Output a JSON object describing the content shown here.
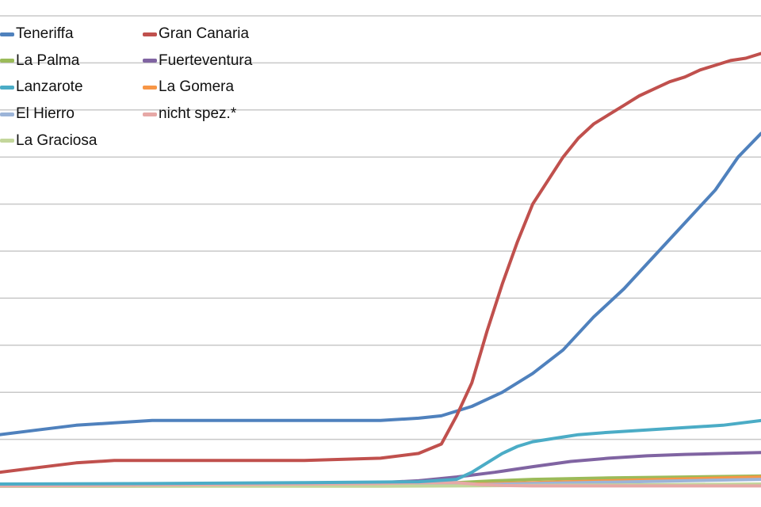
{
  "chart_data": {
    "type": "line",
    "title": "",
    "xlabel": "",
    "ylabel": "",
    "x_range": [
      0,
      100
    ],
    "ylim": [
      0,
      100
    ],
    "grid": true,
    "legend_position": "top-left",
    "series": [
      {
        "name": "Teneriffa",
        "color": "#4f81bd",
        "x": [
          0,
          5,
          10,
          15,
          20,
          30,
          40,
          50,
          55,
          58,
          62,
          66,
          70,
          74,
          78,
          82,
          86,
          90,
          94,
          97,
          100
        ],
        "y": [
          11,
          12,
          13,
          13.5,
          14,
          14,
          14,
          14,
          14.5,
          15,
          17,
          20,
          24,
          29,
          36,
          42,
          49,
          56,
          63,
          70,
          75
        ]
      },
      {
        "name": "Gran Canaria",
        "color": "#c0504d",
        "x": [
          0,
          5,
          10,
          15,
          20,
          30,
          40,
          50,
          55,
          58,
          60,
          62,
          64,
          66,
          68,
          70,
          72,
          74,
          76,
          78,
          80,
          82,
          84,
          86,
          88,
          90,
          92,
          94,
          96,
          98,
          100
        ],
        "y": [
          3,
          4,
          5,
          5.5,
          5.5,
          5.5,
          5.5,
          6,
          7,
          9,
          15,
          22,
          33,
          43,
          52,
          60,
          65,
          70,
          74,
          77,
          79,
          81,
          83,
          84.5,
          86,
          87,
          88.5,
          89.5,
          90.5,
          91,
          92
        ]
      },
      {
        "name": "La Palma",
        "color": "#9bbb59",
        "x": [
          0,
          20,
          40,
          55,
          60,
          65,
          70,
          80,
          90,
          100
        ],
        "y": [
          0.2,
          0.3,
          0.4,
          0.5,
          0.8,
          1.2,
          1.5,
          1.8,
          2,
          2.2
        ]
      },
      {
        "name": "Fuerteventura",
        "color": "#8064a2",
        "x": [
          0,
          20,
          40,
          50,
          55,
          60,
          65,
          70,
          75,
          80,
          85,
          90,
          95,
          100
        ],
        "y": [
          0.1,
          0.2,
          0.4,
          0.8,
          1.2,
          2,
          3,
          4.2,
          5.3,
          6,
          6.5,
          6.8,
          7,
          7.2
        ]
      },
      {
        "name": "La Gomera",
        "color": "#f79646",
        "x": [
          0,
          50,
          60,
          70,
          80,
          90,
          100
        ],
        "y": [
          0.1,
          0.2,
          0.4,
          0.8,
          1.2,
          1.6,
          2
        ]
      },
      {
        "name": "El Hierro",
        "color": "#9cb4d8",
        "x": [
          0,
          50,
          60,
          70,
          80,
          90,
          100
        ],
        "y": [
          0.05,
          0.1,
          0.3,
          0.6,
          0.9,
          1.2,
          1.5
        ]
      },
      {
        "name": "La Graciosa",
        "color": "#c3d69b",
        "x": [
          0,
          50,
          60,
          70,
          80,
          90,
          100
        ],
        "y": [
          0.02,
          0.05,
          0.1,
          0.2,
          0.3,
          0.4,
          0.5
        ]
      },
      {
        "name": "nicht spez.*",
        "color": "#e6a8a6",
        "x": [
          0,
          40,
          50,
          55,
          60,
          63,
          66,
          70,
          80,
          90,
          100
        ],
        "y": [
          0.1,
          0.5,
          0.6,
          0.8,
          0.8,
          0.4,
          0.2,
          0.1,
          0.1,
          0.1,
          0.1
        ]
      },
      {
        "name": "Lanzarote",
        "color": "#4bacc6",
        "x": [
          0,
          20,
          40,
          55,
          60,
          62,
          64,
          66,
          68,
          70,
          72,
          74,
          76,
          80,
          85,
          90,
          95,
          100
        ],
        "y": [
          0.5,
          0.6,
          0.8,
          1,
          1.5,
          3,
          5,
          7,
          8.5,
          9.5,
          10,
          10.5,
          11,
          11.5,
          12,
          12.5,
          13,
          14
        ]
      }
    ],
    "legend": [
      {
        "label": "Teneriffa",
        "color": "#4f81bd",
        "col": 0,
        "row": 0
      },
      {
        "label": "Gran Canaria",
        "color": "#c0504d",
        "col": 1,
        "row": 0
      },
      {
        "label": "La Palma",
        "color": "#9bbb59",
        "col": 0,
        "row": 1
      },
      {
        "label": "Fuerteventura",
        "color": "#8064a2",
        "col": 1,
        "row": 1
      },
      {
        "label": "Lanzarote",
        "color": "#4bacc6",
        "col": 0,
        "row": 2
      },
      {
        "label": "La Gomera",
        "color": "#f79646",
        "col": 1,
        "row": 2
      },
      {
        "label": "El Hierro",
        "color": "#9cb4d8",
        "col": 0,
        "row": 3
      },
      {
        "label": "nicht spez.*",
        "color": "#e6a8a6",
        "col": 1,
        "row": 3
      },
      {
        "label": "La Graciosa",
        "color": "#c3d69b",
        "col": 0,
        "row": 4
      }
    ]
  }
}
